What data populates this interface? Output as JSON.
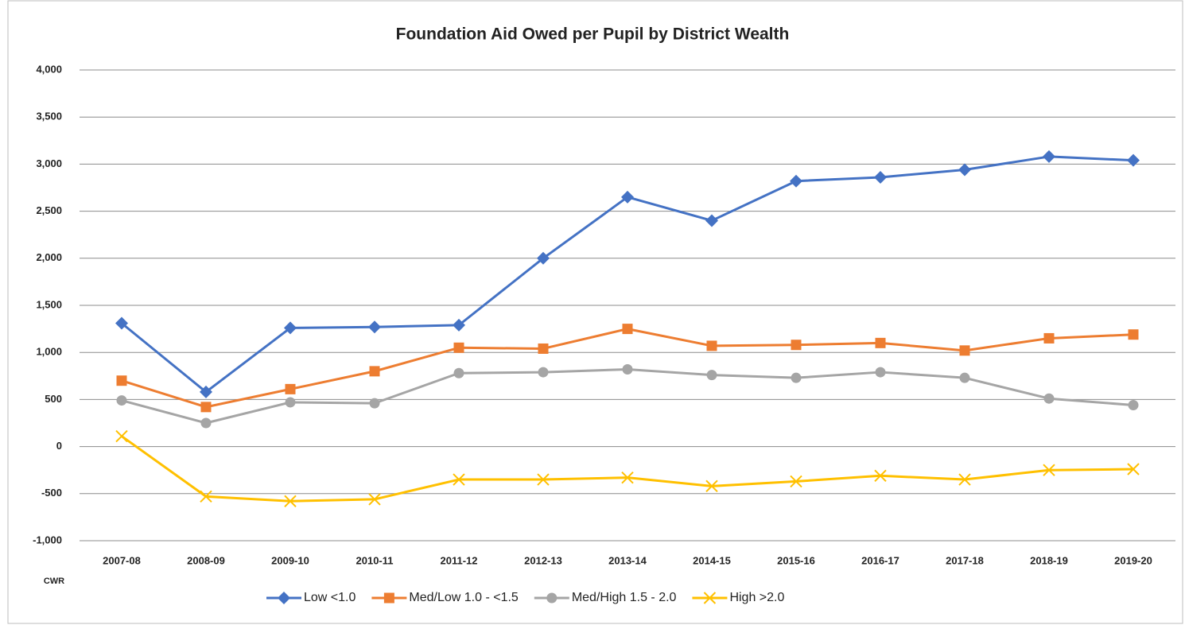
{
  "chart_data": {
    "type": "line",
    "title": "Foundation Aid Owed per Pupil by District Wealth",
    "x_label": "CWR",
    "categories": [
      "2007-08",
      "2008-09",
      "2009-10",
      "2010-11",
      "2011-12",
      "2012-13",
      "2013-14",
      "2014-15",
      "2015-16",
      "2016-17",
      "2017-18",
      "2018-19",
      "2019-20"
    ],
    "series": [
      {
        "name": "Low <1.0",
        "color": "#4472c4",
        "marker": "diamond",
        "values": [
          1310,
          580,
          1260,
          1270,
          1290,
          2000,
          2650,
          2400,
          2820,
          2860,
          2940,
          3080,
          3040
        ]
      },
      {
        "name": "Med/Low 1.0 - <1.5",
        "color": "#ed7d31",
        "marker": "square",
        "values": [
          700,
          420,
          610,
          800,
          1050,
          1040,
          1250,
          1070,
          1080,
          1100,
          1020,
          1150,
          1190
        ]
      },
      {
        "name": "Med/High 1.5 - 2.0",
        "color": "#a5a5a5",
        "marker": "circle",
        "values": [
          490,
          250,
          470,
          460,
          780,
          790,
          820,
          760,
          730,
          790,
          730,
          510,
          440
        ]
      },
      {
        "name": "High >2.0",
        "color": "#ffc000",
        "marker": "x",
        "values": [
          110,
          -530,
          -580,
          -560,
          -350,
          -350,
          -330,
          -420,
          -370,
          -310,
          -350,
          -250,
          -240
        ]
      }
    ],
    "ylim": [
      -1000,
      4000
    ],
    "yticks": [
      {
        "value": -1000,
        "label": "-1,000"
      },
      -500,
      0,
      500,
      {
        "value": 1000,
        "label": "1,000"
      },
      {
        "value": 1500,
        "label": "1,500"
      },
      {
        "value": 2000,
        "label": "2,000"
      },
      {
        "value": 2500,
        "label": "2,500"
      },
      {
        "value": 3000,
        "label": "3,000"
      },
      {
        "value": 3500,
        "label": "3,500"
      },
      {
        "value": 4000,
        "label": "4,000"
      }
    ],
    "grid": true,
    "legend": "bottom"
  }
}
